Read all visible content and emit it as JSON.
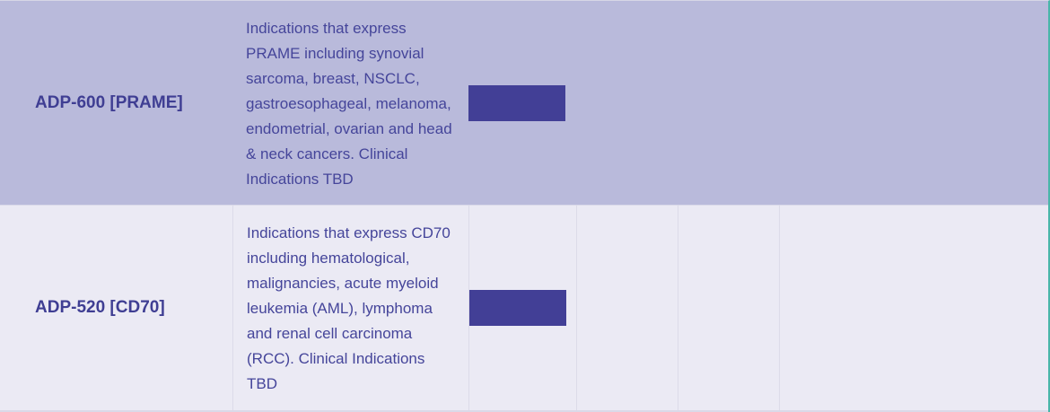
{
  "pipeline": {
    "rows": [
      {
        "program": "ADP-600 [PRAME]",
        "description": "Indications that express PRAME including synovial sarcoma, breast, NSCLC, gastroesophageal, melanoma, endometrial, ovarian and head & neck cancers. Clinical Indications TBD",
        "stage_progress": 0.3
      },
      {
        "program": "ADP-520 [CD70]",
        "description": "Indications that express CD70 including hematological, malignancies, acute myeloid leukemia (AML), lymphoma and renal cell carcinoma (RCC). Clinical Indications TBD",
        "stage_progress": 0.3
      }
    ],
    "colors": {
      "row_highlight": "#b9badb",
      "row_light": "#ebeaf4",
      "text": "#3f3e93",
      "progress": "#423f96",
      "accent_border": "#49b6a9"
    }
  }
}
